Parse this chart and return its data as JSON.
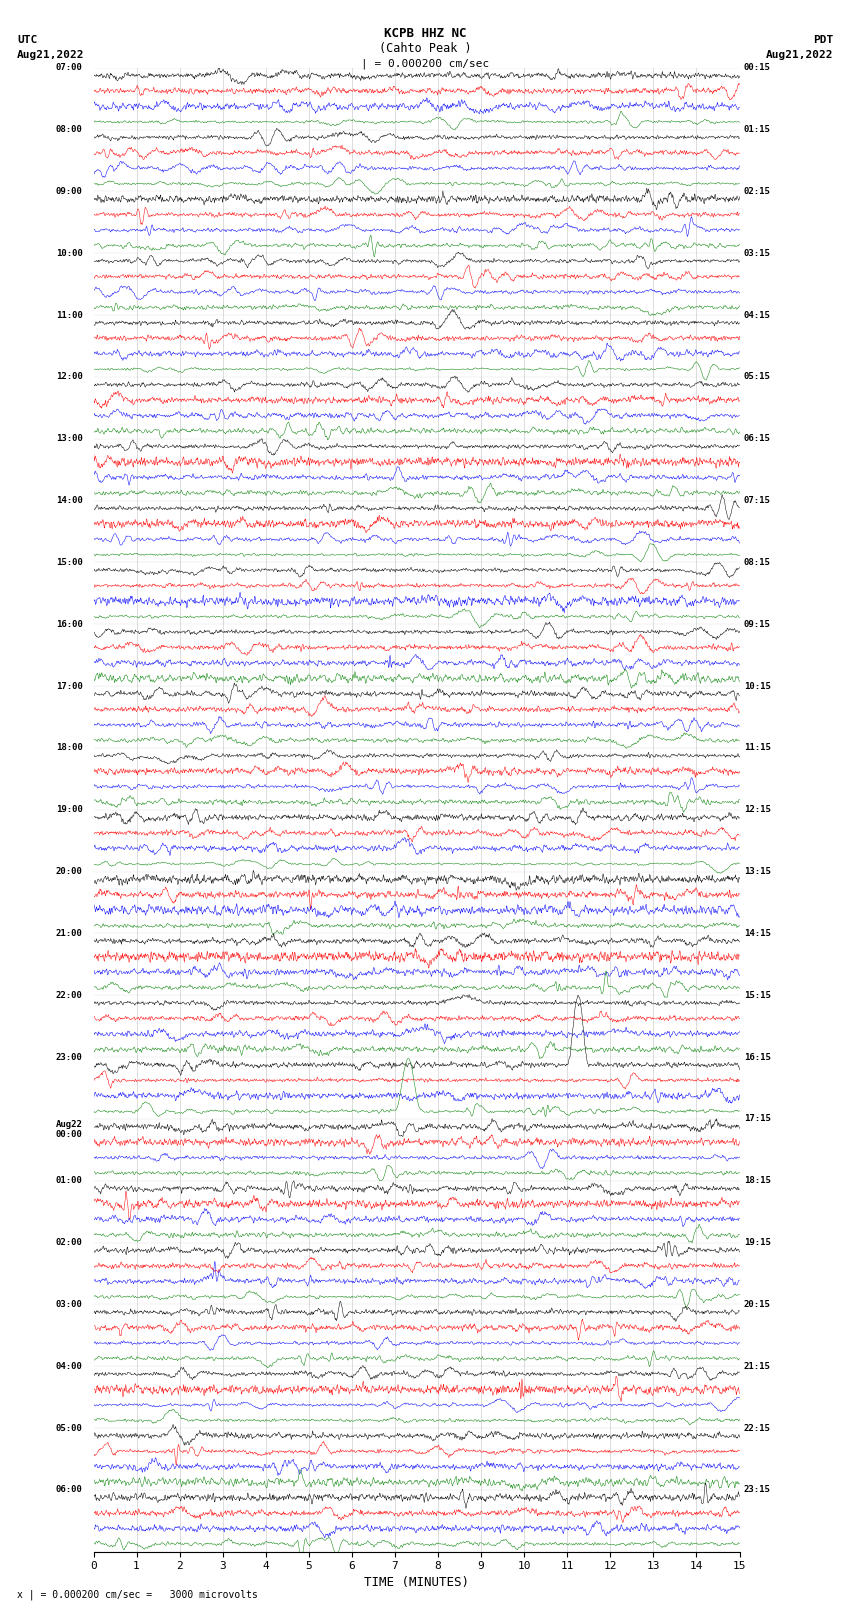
{
  "title_line1": "KCPB HHZ NC",
  "title_line2": "(Cahto Peak )",
  "scale_label": "| = 0.000200 cm/sec",
  "left_header_line1": "UTC",
  "left_header_line2": "Aug21,2022",
  "right_header_line1": "PDT",
  "right_header_line2": "Aug21,2022",
  "xlabel": "TIME (MINUTES)",
  "footer": "x | = 0.000200 cm/sec =   3000 microvolts",
  "fig_width": 8.5,
  "fig_height": 16.13,
  "dpi": 100,
  "bg_color": "#ffffff",
  "trace_colors": [
    "#000000",
    "#ff0000",
    "#0000ff",
    "#008000"
  ],
  "left_utc_labels": [
    "07:00",
    "08:00",
    "09:00",
    "10:00",
    "11:00",
    "12:00",
    "13:00",
    "14:00",
    "15:00",
    "16:00",
    "17:00",
    "18:00",
    "19:00",
    "20:00",
    "21:00",
    "22:00",
    "23:00",
    "Aug22\n00:00",
    "01:00",
    "02:00",
    "03:00",
    "04:00",
    "05:00",
    "06:00"
  ],
  "right_pdt_labels": [
    "00:15",
    "01:15",
    "02:15",
    "03:15",
    "04:15",
    "05:15",
    "06:15",
    "07:15",
    "08:15",
    "09:15",
    "10:15",
    "11:15",
    "12:15",
    "13:15",
    "14:15",
    "15:15",
    "16:15",
    "17:15",
    "18:15",
    "19:15",
    "20:15",
    "21:15",
    "22:15",
    "23:15"
  ],
  "x_ticks": [
    0,
    1,
    2,
    3,
    4,
    5,
    6,
    7,
    8,
    9,
    10,
    11,
    12,
    13,
    14,
    15
  ],
  "n_traces_per_group": 4,
  "n_groups": 24,
  "trace_amp": 0.38,
  "n_points": 1800,
  "vert_lines_x": [
    1,
    2,
    3,
    4,
    5,
    6,
    7,
    8,
    9,
    10,
    11,
    12,
    13,
    14
  ]
}
